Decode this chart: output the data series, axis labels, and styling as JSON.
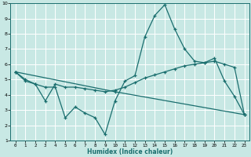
{
  "xlabel": "Humidex (Indice chaleur)",
  "ylabel": "",
  "xlim": [
    -0.5,
    23.5
  ],
  "ylim": [
    1,
    10
  ],
  "xticks": [
    0,
    1,
    2,
    3,
    4,
    5,
    6,
    7,
    8,
    9,
    10,
    11,
    12,
    13,
    14,
    15,
    16,
    17,
    18,
    19,
    20,
    21,
    22,
    23
  ],
  "yticks": [
    1,
    2,
    3,
    4,
    5,
    6,
    7,
    8,
    9,
    10
  ],
  "bg_color": "#c8e8e4",
  "line_color": "#1a6e6e",
  "grid_color": "#ffffff",
  "line1_x": [
    0,
    1,
    2,
    3,
    4,
    5,
    6,
    7,
    8,
    9,
    10,
    11,
    12,
    13,
    14,
    15,
    16,
    17,
    18,
    19,
    20,
    21,
    22,
    23
  ],
  "line1_y": [
    5.5,
    5.0,
    4.7,
    4.5,
    4.5,
    2.5,
    3.2,
    2.8,
    2.5,
    1.4,
    3.6,
    4.9,
    5.25,
    7.8,
    9.2,
    9.9,
    8.3,
    7.0,
    6.2,
    6.1,
    6.4,
    4.9,
    3.9,
    2.7
  ],
  "line2_x": [
    0,
    1,
    2,
    3,
    4,
    5,
    6,
    7,
    8,
    9,
    10,
    11,
    12,
    13,
    14,
    15,
    16,
    17,
    18,
    19,
    20,
    21,
    22,
    23
  ],
  "line2_y": [
    5.5,
    4.9,
    4.7,
    3.6,
    4.7,
    4.5,
    4.5,
    4.4,
    4.3,
    4.2,
    4.3,
    4.5,
    4.8,
    5.1,
    5.3,
    5.5,
    5.7,
    5.9,
    6.0,
    6.1,
    6.2,
    6.0,
    5.8,
    2.7
  ],
  "line3_x": [
    0,
    10,
    23
  ],
  "line3_y": [
    5.5,
    4.2,
    2.7
  ]
}
